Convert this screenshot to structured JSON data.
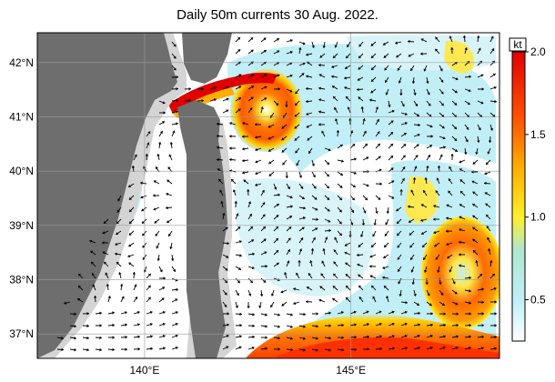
{
  "title": "Daily 50m currents 30 Aug. 2022.",
  "map": {
    "lat_labels": [
      "42°N",
      "41°N",
      "40°N",
      "39°N",
      "38°N",
      "37°N"
    ],
    "lat_values": [
      42,
      41,
      40,
      39,
      38,
      37
    ],
    "lon_labels": [
      "140°E",
      "145°E"
    ],
    "lon_values": [
      140,
      145
    ],
    "lon_range": [
      137.4,
      148.6
    ],
    "lat_range": [
      36.55,
      42.55
    ],
    "colors": {
      "land": "#6e6e6e",
      "shelf": "#d4d4d4",
      "sea": "#ffffff",
      "arrow": "#000000",
      "grid": "#9a9a9a"
    }
  },
  "colorbar": {
    "unit": "kt",
    "tick_labels": [
      "2.0",
      "1.5",
      "1.0",
      "0.5"
    ],
    "tick_values": [
      2.0,
      1.5,
      1.0,
      0.5
    ],
    "range": [
      0.25,
      2.0
    ],
    "stops": [
      {
        "v": 0.25,
        "color": "#ffffff"
      },
      {
        "v": 0.5,
        "color": "#bfeff7"
      },
      {
        "v": 0.8,
        "color": "#aee8cf"
      },
      {
        "v": 1.0,
        "color": "#ffef2a"
      },
      {
        "v": 1.3,
        "color": "#ffae00"
      },
      {
        "v": 1.6,
        "color": "#ff5200"
      },
      {
        "v": 2.0,
        "color": "#e00000"
      }
    ]
  },
  "features": {
    "tsugaru_strait": "strong eastward jet",
    "eddy_north": "anticyclonic eddy near 41N 143E",
    "kuroshio_extension": "strong eastward current near 37N 143-148E",
    "eddy_east": "eddy near 38N 147E"
  }
}
